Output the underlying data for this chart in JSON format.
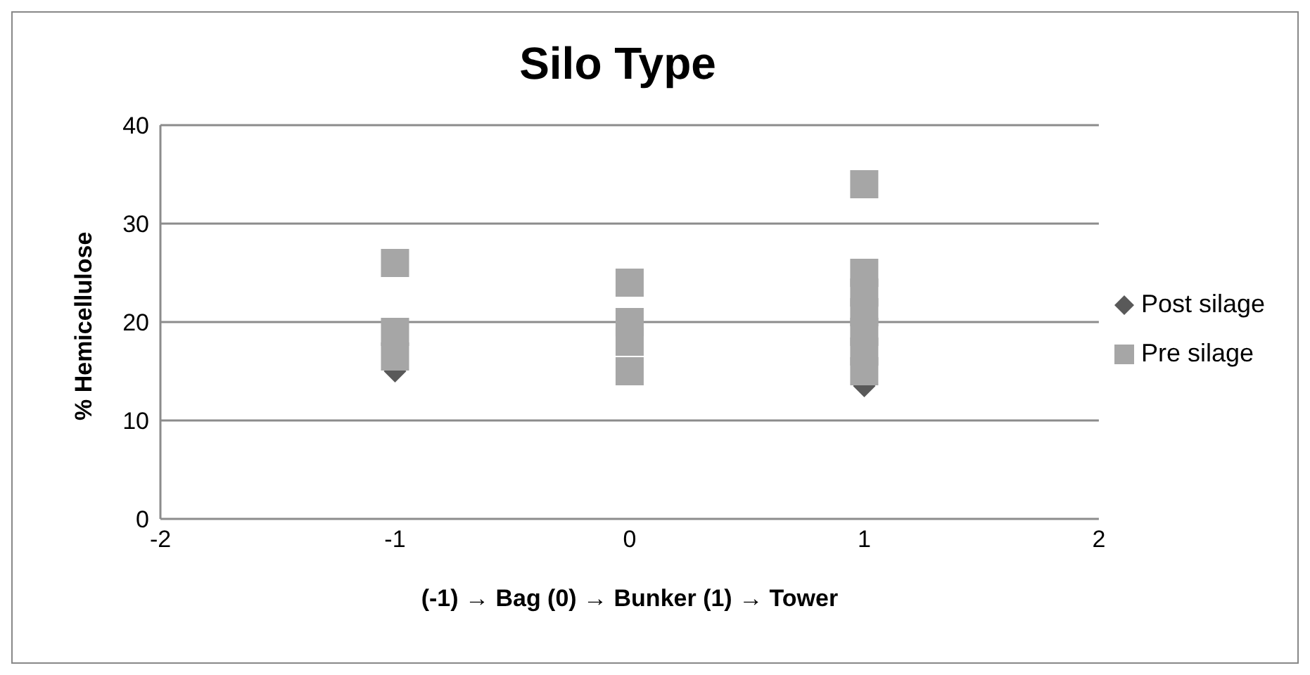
{
  "chart_data": {
    "type": "scatter",
    "title": "Silo Type",
    "xlabel": "(-1) → Bag    (0) → Bunker    (1) → Tower",
    "ylabel": "% Hemicellulose",
    "xlim": [
      -2,
      2
    ],
    "xticks": [
      -2,
      -1,
      0,
      1,
      2
    ],
    "ylim": [
      0,
      40
    ],
    "yticks": [
      0,
      10,
      20,
      30,
      40
    ],
    "grid": "y",
    "legend": "right",
    "series": [
      {
        "name": "Post silage",
        "color": "#595959",
        "marker": "diamond",
        "x": [
          -1,
          1
        ],
        "values": [
          15,
          13.5
        ]
      },
      {
        "name": "Pre silage",
        "color": "#a6a6a6",
        "marker": "square",
        "x": [
          -1,
          -1,
          -1,
          0,
          0,
          0,
          0,
          1,
          1,
          1,
          1,
          1,
          1,
          1
        ],
        "values": [
          26,
          19,
          16.5,
          24,
          20,
          18,
          15,
          34,
          25,
          23,
          21,
          19,
          17,
          15
        ]
      }
    ]
  }
}
